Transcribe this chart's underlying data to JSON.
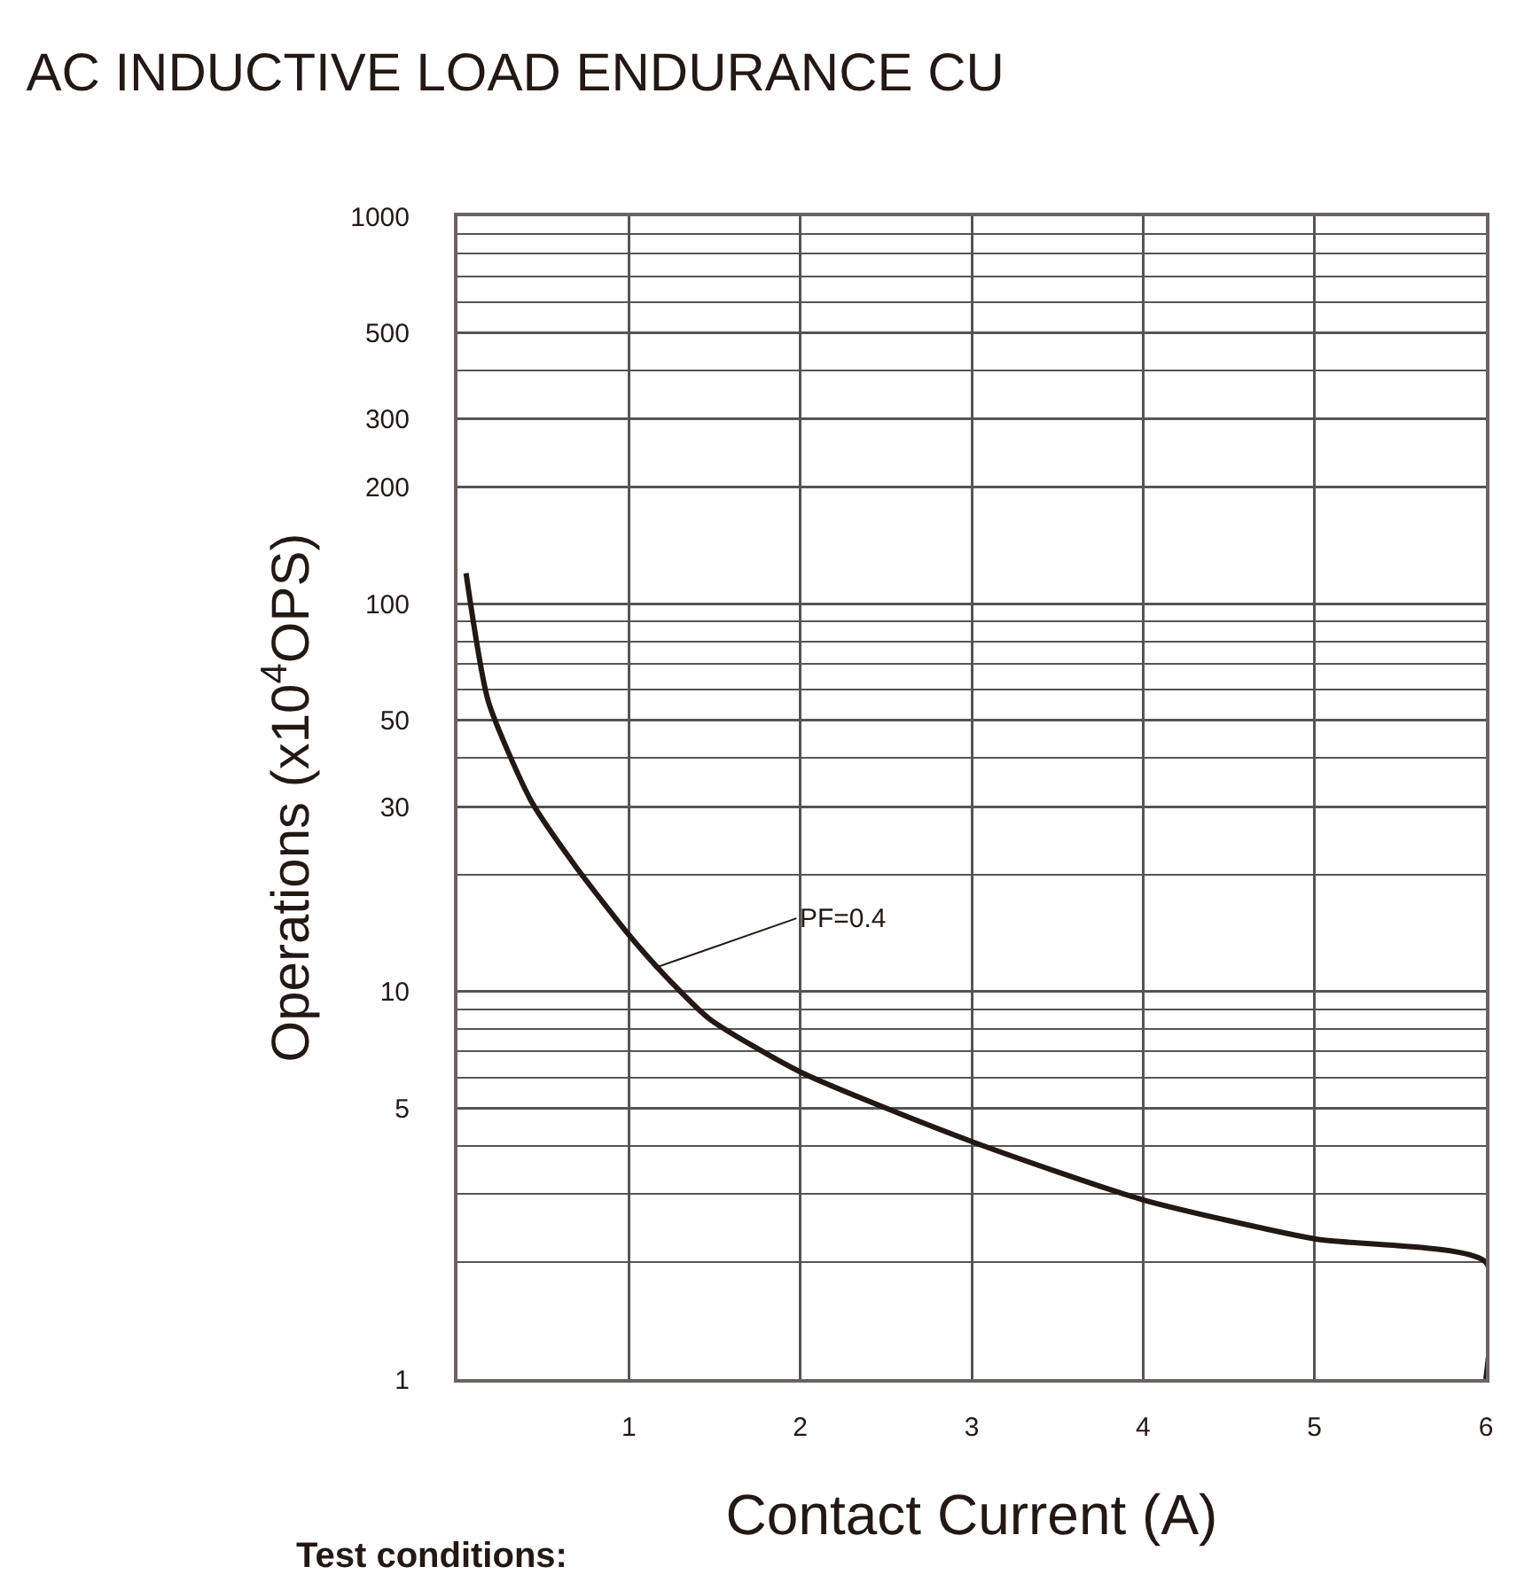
{
  "chart_data": {
    "type": "line",
    "title": "AC INDUCTIVE LOAD ENDURANCE CU",
    "xlabel": "Contact Current (A)",
    "ylabel": "Operations (x10$^{4}$OPS)",
    "log": "y",
    "grid": true,
    "marker": "none",
    "line_style": "solid",
    "xlim": [
      0,
      6
    ],
    "xticks": [
      1,
      2,
      3,
      4,
      5,
      6
    ],
    "ylim": [
      1,
      1000
    ],
    "yticks": [
      1,
      5,
      10,
      30,
      50,
      100,
      200,
      300,
      500,
      1000
    ],
    "series": [
      {
        "color": "#231815",
        "x": [
          0.05,
          0.18,
          0.43,
          0.69,
          1,
          1.21,
          1.47,
          2,
          3,
          4,
          5,
          6,
          6
        ],
        "values": [
          120,
          56,
          31,
          21,
          14,
          11,
          8.5,
          6.2,
          4.1,
          2.9,
          2.3,
          2.0,
          1
        ]
      }
    ],
    "annotations": [
      {
        "text": "PF=0.4",
        "x": 1.15,
        "y": 11.5
      },
      "Test conditions:"
    ]
  }
}
